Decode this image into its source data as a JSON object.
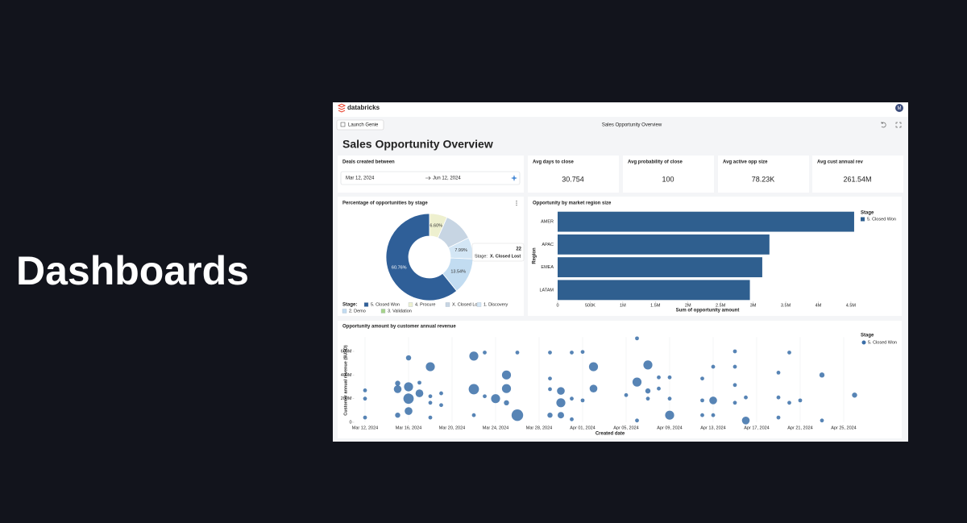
{
  "slide_title": "Dashboards",
  "header": {
    "brand": "databricks",
    "avatar": "M",
    "genie_button": "Launch Genie",
    "tab_title": "Sales Opportunity Overview"
  },
  "dashboard": {
    "title": "Sales Opportunity Overview",
    "filter": {
      "label": "Deals created between",
      "start": "Mar 12, 2024",
      "end": "Jun 12, 2024"
    },
    "kpis": [
      {
        "label": "Avg days to close",
        "value": "30.754"
      },
      {
        "label": "Avg probability of close",
        "value": "100"
      },
      {
        "label": "Avg active opp size",
        "value": "78.23K"
      },
      {
        "label": "Avg cust annual rev",
        "value": "261.54M"
      }
    ]
  },
  "chart_data": [
    {
      "type": "pie",
      "title": "Percentage of opportunities by stage",
      "legend_title": "Stage:",
      "categories": [
        "5. Closed Won",
        "4. Procure",
        "X. Closed Lost",
        "1. Discovery",
        "2. Demo",
        "3. Validation"
      ],
      "values": [
        60.76,
        6.6,
        11.11,
        7.99,
        13.54,
        0
      ],
      "value_labels": [
        "60.76%",
        "6.60%",
        null,
        "7.99%",
        "13.54%",
        null
      ],
      "colors": [
        "#2f5f98",
        "#eef0cf",
        "#c7d5e3",
        "#d3e6f5",
        "#c2dcf1",
        "#a7d38a"
      ],
      "tooltip": {
        "value": 22,
        "label": "Stage:",
        "stage": "X. Closed Lost"
      }
    },
    {
      "type": "hbar",
      "title": "Opportunity by market region size",
      "xlabel": "Sum of opportunity amount",
      "ylabel": "Region",
      "legend_title": "Stage",
      "categories": [
        "AMER",
        "APAC",
        "EMEA",
        "LATAM"
      ],
      "series": [
        {
          "name": "5. Closed Won",
          "color": "#2f5f8f",
          "values": [
            4550000,
            3250000,
            3140000,
            2950000
          ]
        }
      ],
      "xlim": [
        0,
        4600000
      ],
      "xticks": [
        0,
        {
          "value": 500000,
          "label": "500K"
        },
        {
          "value": 1000000,
          "label": "1M"
        },
        {
          "value": 1500000,
          "label": "1.5M"
        },
        {
          "value": 2000000,
          "label": "2M"
        },
        {
          "value": 2500000,
          "label": "2.5M"
        },
        {
          "value": 3000000,
          "label": "3M"
        },
        {
          "value": 3500000,
          "label": "3.5M"
        },
        {
          "value": 4000000,
          "label": "4M"
        },
        {
          "value": 4500000,
          "label": "4.5M"
        }
      ]
    },
    {
      "type": "scatter",
      "title": "Opportunity amount by customer annual revenue",
      "xlabel": "Created date",
      "ylabel": "Customer annual revenue ($USD)",
      "legend_title": "Stage",
      "name": "5. Closed Won",
      "color": "#3a6ea8",
      "grid": true,
      "x": [
        "2024-03-12",
        "2024-03-12",
        "2024-03-12",
        "2024-03-15",
        "2024-03-15",
        "2024-03-15",
        "2024-03-16",
        "2024-03-16",
        "2024-03-16",
        "2024-03-16",
        "2024-03-17",
        "2024-03-17",
        "2024-03-18",
        "2024-03-18",
        "2024-03-18",
        "2024-03-18",
        "2024-03-19",
        "2024-03-19",
        "2024-03-22",
        "2024-03-22",
        "2024-03-22",
        "2024-03-23",
        "2024-03-23",
        "2024-03-24",
        "2024-03-25",
        "2024-03-25",
        "2024-03-25",
        "2024-03-26",
        "2024-03-26",
        "2024-03-29",
        "2024-03-29",
        "2024-03-29",
        "2024-03-30",
        "2024-03-30",
        "2024-03-29",
        "2024-03-30",
        "2024-03-31",
        "2024-03-31",
        "2024-03-31",
        "2024-04-01",
        "2024-04-01",
        "2024-04-02",
        "2024-04-02",
        "2024-04-05",
        "2024-04-06",
        "2024-04-06",
        "2024-04-06",
        "2024-04-07",
        "2024-04-07",
        "2024-04-07",
        "2024-04-08",
        "2024-04-08",
        "2024-04-09",
        "2024-04-09",
        "2024-04-09",
        "2024-04-12",
        "2024-04-12",
        "2024-04-13",
        "2024-04-13",
        "2024-04-16",
        "2024-04-15",
        "2024-04-15",
        "2024-04-15",
        "2024-04-15",
        "2024-04-16",
        "2024-04-12",
        "2024-04-13",
        "2024-04-19",
        "2024-04-19",
        "2024-04-19",
        "2024-04-20",
        "2024-04-21",
        "2024-04-20",
        "2024-04-23",
        "2024-04-23",
        "2024-04-26"
      ],
      "values": [
        270000000,
        200000000,
        40000000,
        280000000,
        60000000,
        330000000,
        545000000,
        300000000,
        200000000,
        95000000,
        245000000,
        335000000,
        470000000,
        220000000,
        165000000,
        40000000,
        245000000,
        145000000,
        560000000,
        280000000,
        60000000,
        590000000,
        220000000,
        200000000,
        400000000,
        285000000,
        165000000,
        60000000,
        590000000,
        590000000,
        370000000,
        280000000,
        265000000,
        165000000,
        60000000,
        60000000,
        590000000,
        200000000,
        25000000,
        595000000,
        185000000,
        470000000,
        285000000,
        230000000,
        15000000,
        710000000,
        340000000,
        485000000,
        265000000,
        200000000,
        380000000,
        285000000,
        60000000,
        380000000,
        200000000,
        370000000,
        185000000,
        470000000,
        185000000,
        15000000,
        600000000,
        470000000,
        315000000,
        165000000,
        210000000,
        60000000,
        60000000,
        420000000,
        210000000,
        40000000,
        590000000,
        185000000,
        165000000,
        400000000,
        15000000,
        230000000
      ],
      "sizes": [
        3,
        3,
        3,
        6,
        4,
        4,
        4,
        7,
        8,
        6,
        6,
        3,
        7,
        3,
        3,
        3,
        3,
        3,
        7,
        8,
        3,
        3,
        3,
        7,
        7,
        7,
        4,
        9,
        3,
        3,
        3,
        3,
        6,
        7,
        4,
        5,
        3,
        3,
        3,
        3,
        3,
        7,
        6,
        3,
        3,
        3,
        7,
        7,
        4,
        3,
        3,
        3,
        7,
        3,
        3,
        3,
        3,
        3,
        6,
        6,
        3,
        3,
        3,
        3,
        3,
        3,
        3,
        3,
        3,
        3,
        3,
        3,
        3,
        4,
        3,
        4
      ],
      "xlim": [
        "2024-03-11",
        "2024-04-26"
      ],
      "xticks": [
        {
          "value": "2024-03-12",
          "label": "Mar 12, 2024"
        },
        {
          "value": "2024-03-16",
          "label": "Mar 16, 2024"
        },
        {
          "value": "2024-03-20",
          "label": "Mar 20, 2024"
        },
        {
          "value": "2024-03-24",
          "label": "Mar 24, 2024"
        },
        {
          "value": "2024-03-28",
          "label": "Mar 28, 2024"
        },
        {
          "value": "2024-04-01",
          "label": "Apr 01, 2024"
        },
        {
          "value": "2024-04-05",
          "label": "Apr 05, 2024"
        },
        {
          "value": "2024-04-09",
          "label": "Apr 09, 2024"
        },
        {
          "value": "2024-04-13",
          "label": "Apr 13, 2024"
        },
        {
          "value": "2024-04-17",
          "label": "Apr 17, 2024"
        },
        {
          "value": "2024-04-21",
          "label": "Apr 21, 2024"
        },
        {
          "value": "2024-04-25",
          "label": "Apr 25, 2024"
        }
      ],
      "ylim": [
        0,
        720000000
      ],
      "yticks": [
        0,
        {
          "value": 200000000,
          "label": "200M"
        },
        {
          "value": 400000000,
          "label": "400M"
        },
        {
          "value": 600000000,
          "label": "600M"
        }
      ]
    }
  ]
}
